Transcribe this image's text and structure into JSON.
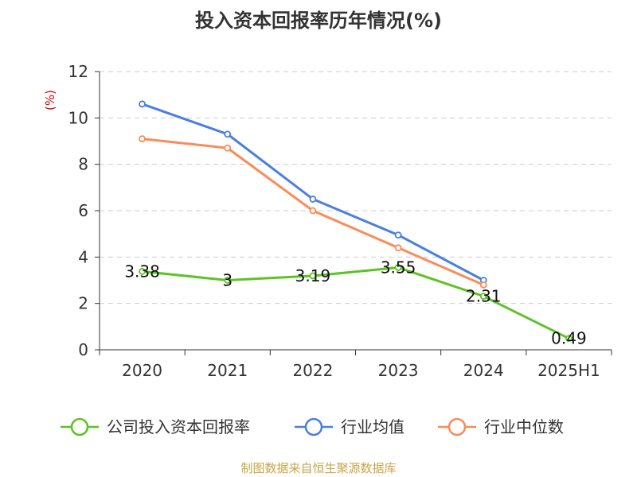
{
  "chart_data": {
    "type": "line",
    "title": "投入资本回报率历年情况(%)",
    "ylabel": "(%)",
    "xlabel": "",
    "categories": [
      "2020",
      "2021",
      "2022",
      "2023",
      "2024",
      "2025H1"
    ],
    "ylim": [
      0,
      12
    ],
    "yticks": [
      0,
      2,
      4,
      6,
      8,
      10,
      12
    ],
    "grid": true,
    "legend_position": "bottom",
    "series": [
      {
        "name": "公司投入资本回报率",
        "color": "#5dc325",
        "values": [
          3.38,
          3.0,
          3.19,
          3.55,
          2.31,
          0.49
        ],
        "labels": [
          "3.38",
          "3",
          "3.19",
          "3.55",
          "2.31",
          "0.49"
        ]
      },
      {
        "name": "行业均值",
        "color": "#4a7fe0",
        "values": [
          10.6,
          9.3,
          6.5,
          4.95,
          3.0,
          null
        ]
      },
      {
        "name": "行业中位数",
        "color": "#f98c5a",
        "values": [
          9.1,
          8.7,
          6.0,
          4.4,
          2.8,
          null
        ]
      }
    ],
    "source": "制图数据来自恒生聚源数据库"
  }
}
